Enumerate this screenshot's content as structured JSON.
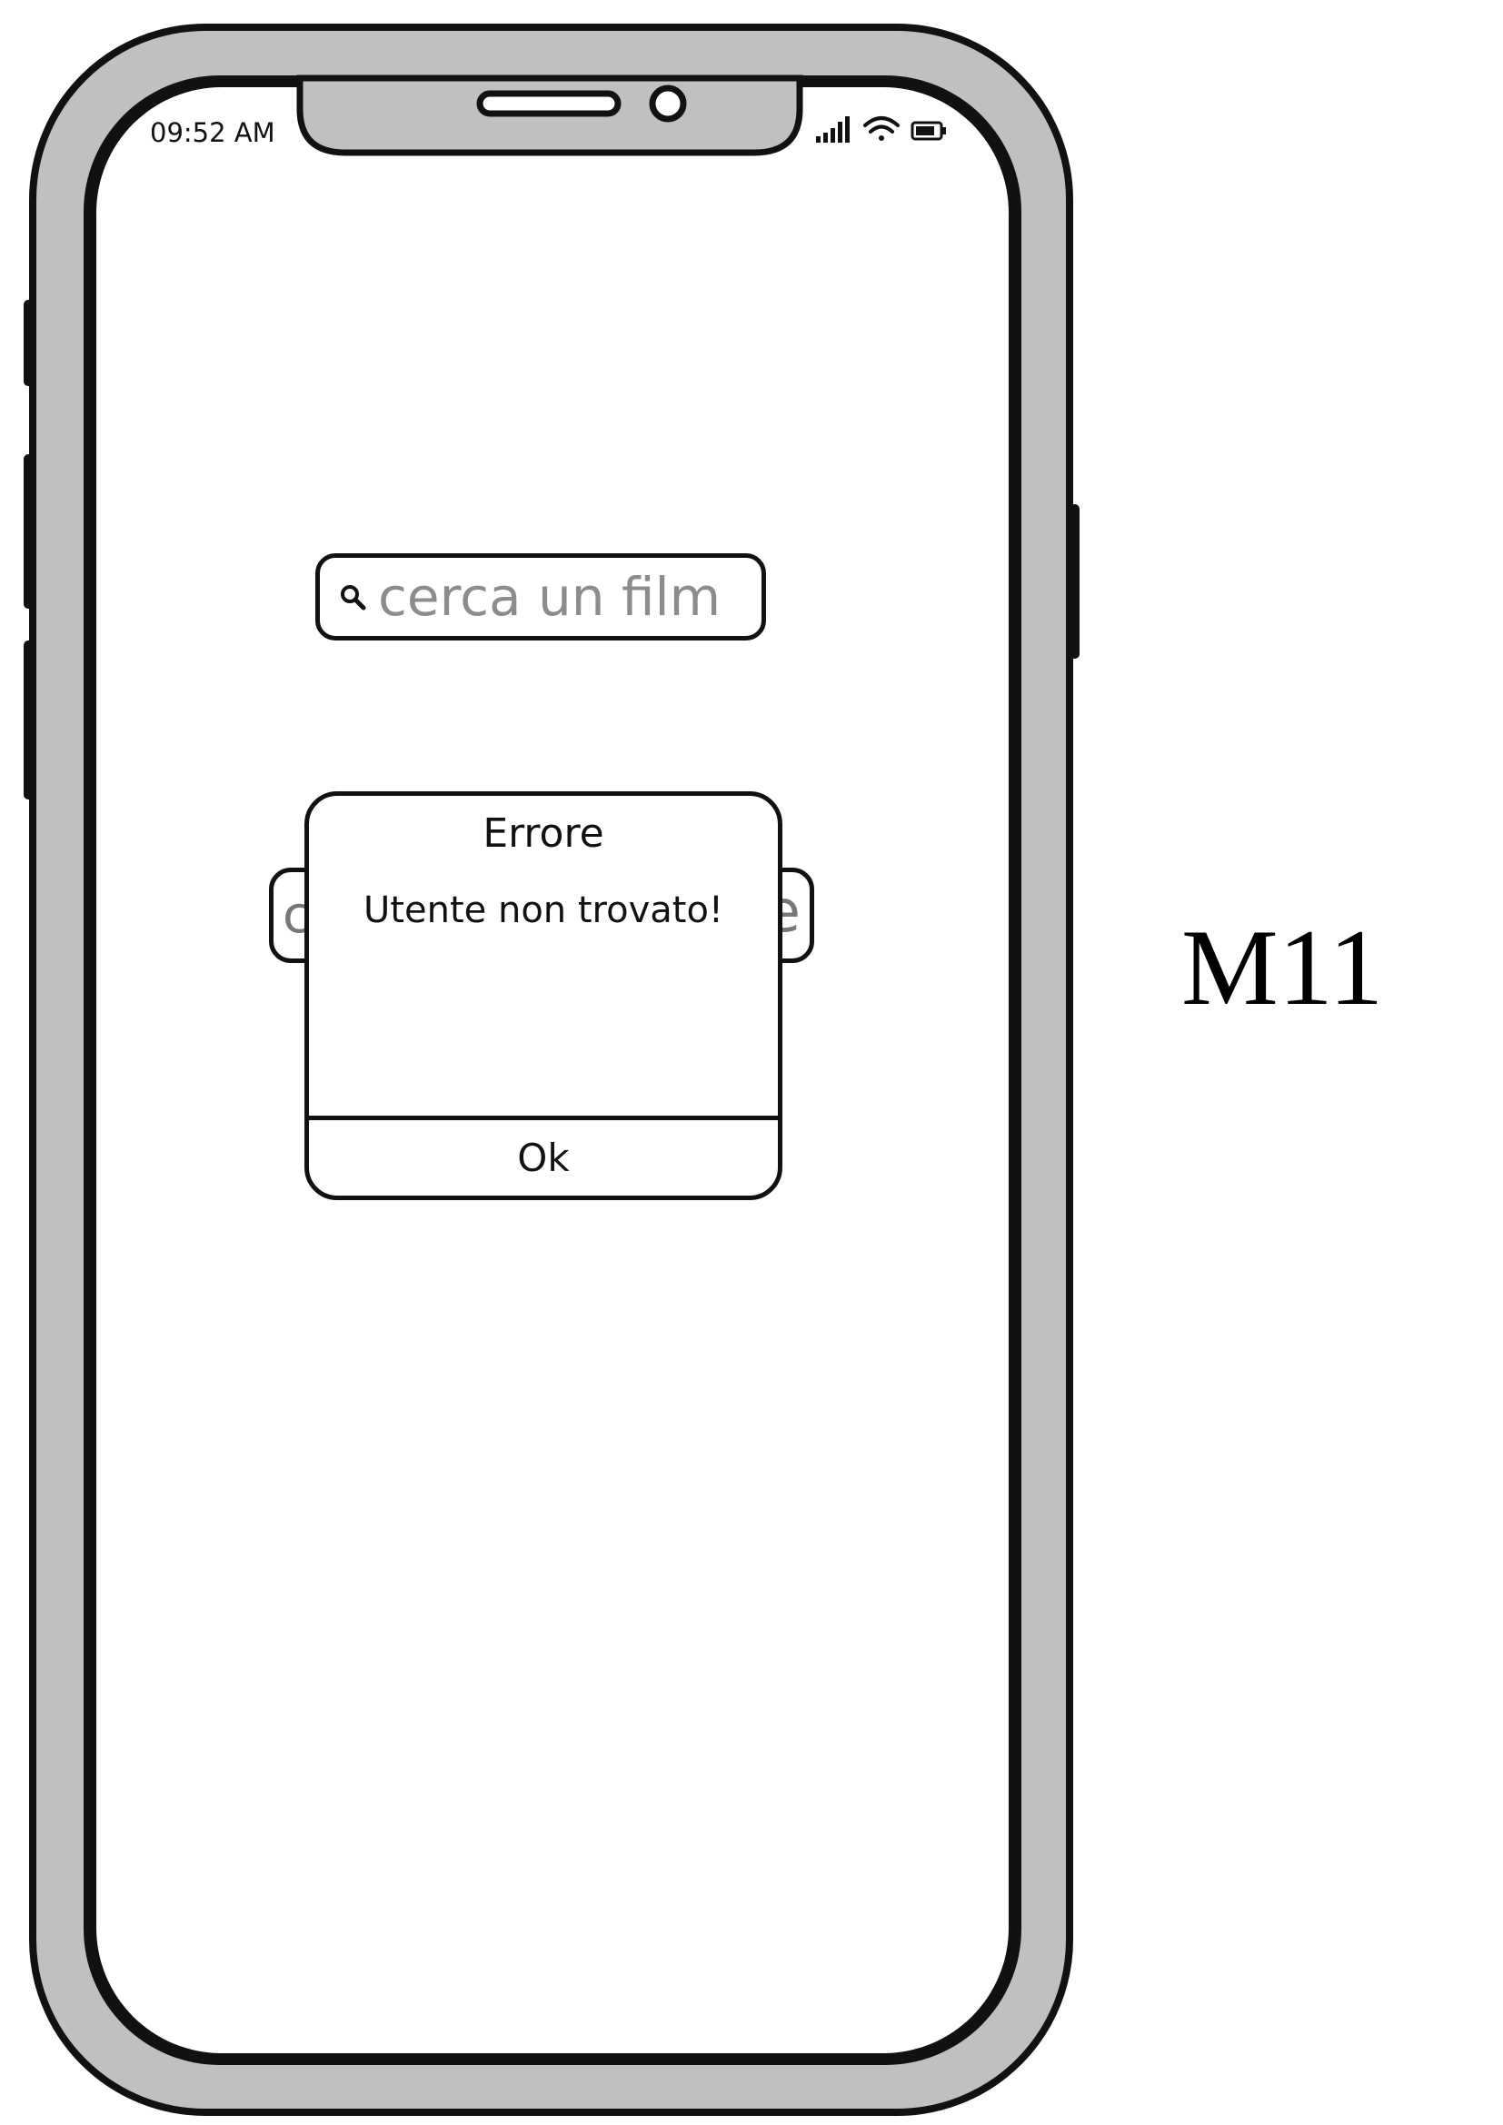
{
  "status_bar": {
    "time": "09:52 AM",
    "icons": [
      "signal-icon",
      "wifi-icon",
      "battery-icon"
    ]
  },
  "search": {
    "placeholder": "cerca un film",
    "icon": "search-icon"
  },
  "dialog": {
    "title": "Errore",
    "message": "Utente non trovato!",
    "ok_label": "Ok"
  },
  "screen_label": "M11",
  "colors": {
    "frame": "#c0c0c0",
    "outline": "#111111",
    "placeholder": "#8c8c8c"
  }
}
